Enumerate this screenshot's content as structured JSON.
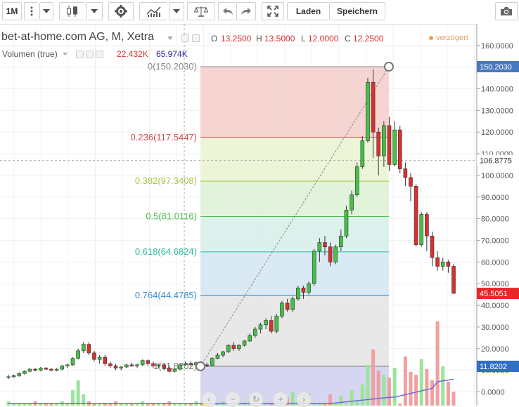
{
  "toolbar": {
    "interval": "1M",
    "load_label": "Laden",
    "save_label": "Speichern",
    "icons": [
      "more-vert-icon",
      "dropdown-icon",
      "candlestick-icon",
      "dropdown-icon",
      "gear-icon",
      "indicators-icon",
      "dropdown-icon",
      "compare-scale-icon",
      "undo-icon",
      "redo-icon",
      "fullscreen-icon",
      "camera-icon"
    ]
  },
  "legend": {
    "title": "bet-at-home.com AG, M, Xetra",
    "o_label": "O",
    "o_value": "13.2500",
    "h_label": "H",
    "h_value": "13.5000",
    "l_label": "L",
    "l_value": "12.0000",
    "c_label": "C",
    "c_value": "12.2500",
    "volume_label": "Volumen (true)",
    "volume_value": "22.432K",
    "volume_ma_value": "65.974K",
    "delayed": "verzögert"
  },
  "colors": {
    "up": "#44c144",
    "down": "#d83030",
    "volume_up": "#9be59b",
    "volume_down": "#f0a0a0",
    "price_tag": "#e8272a",
    "high_tag": "#4a78c0",
    "last_tag": "#2f6fc4"
  },
  "axis": {
    "labels": [
      "160.0000",
      "150.0000",
      "140.0000",
      "130.0000",
      "120.0000",
      "110.0000",
      "100.0000",
      "90.0000",
      "80.0000",
      "70.0000",
      "60.0000",
      "50.0000",
      "40.0000",
      "30.0000",
      "20.0000",
      "10.0000",
      "0.0000"
    ],
    "ticks": [
      160,
      150,
      140,
      130,
      120,
      110,
      100,
      90,
      80,
      70,
      60,
      50,
      40,
      30,
      20,
      10,
      0
    ],
    "tag_high": "150.2030",
    "tag_crosshair": "106.8775",
    "tag_last": "45.5051",
    "tag_low": "11.8202"
  },
  "fib": {
    "levels": [
      {
        "ratio": "0",
        "label": "0(150.2030)",
        "price": 150.203,
        "color": "#888888",
        "fill": "#f4cfcc"
      },
      {
        "ratio": "0.236",
        "label": "0.236(117.5447)",
        "price": 117.5447,
        "color": "#d44a4a",
        "fill": "#eaf4d4"
      },
      {
        "ratio": "0.382",
        "label": "0.382(97.3408)",
        "price": 97.3408,
        "color": "#a8c840",
        "fill": "#dff2d8"
      },
      {
        "ratio": "0.5",
        "label": "0.5(81.0116)",
        "price": 81.0116,
        "color": "#4cbc4c",
        "fill": "#d8f0ea"
      },
      {
        "ratio": "0.618",
        "label": "0.618(64.6824)",
        "price": 64.6824,
        "color": "#2cb8a0",
        "fill": "#d6e8f4"
      },
      {
        "ratio": "0.764",
        "label": "0.764(44.4785)",
        "price": 44.4785,
        "color": "#3a8ccc",
        "fill": "#e6e6e6"
      },
      {
        "ratio": "1",
        "label": "1(11.8202)",
        "price": 11.8202,
        "color": "#777777",
        "fill": "#d9d9f0"
      }
    ]
  },
  "chart_data": {
    "type": "candlestick",
    "title": "bet-at-home.com AG, M, Xetra",
    "ylim": [
      -4,
      168
    ],
    "candles": [
      [
        7,
        8,
        6,
        7
      ],
      [
        7,
        8,
        6.5,
        7.5
      ],
      [
        7.5,
        9,
        7,
        8.5
      ],
      [
        8.5,
        10,
        8,
        9.5
      ],
      [
        9.5,
        11,
        9,
        10.5
      ],
      [
        10.5,
        11,
        9.5,
        10
      ],
      [
        10,
        11.5,
        9.5,
        11
      ],
      [
        11,
        11.5,
        10,
        10.5
      ],
      [
        10.5,
        11,
        9.5,
        10
      ],
      [
        10,
        11,
        9.5,
        10.5
      ],
      [
        10.5,
        12.5,
        10,
        12
      ],
      [
        12,
        13,
        11,
        12.5
      ],
      [
        12.5,
        16,
        12,
        15.5
      ],
      [
        15.5,
        20,
        15,
        19
      ],
      [
        19,
        23,
        18,
        22
      ],
      [
        22,
        23,
        17,
        18
      ],
      [
        18,
        19,
        14,
        15
      ],
      [
        15,
        17,
        13,
        16
      ],
      [
        16,
        17,
        12,
        13
      ],
      [
        13,
        14,
        11,
        12
      ],
      [
        12,
        13,
        10,
        11
      ],
      [
        11,
        12,
        10,
        11.5
      ],
      [
        11.5,
        13,
        11,
        12.5
      ],
      [
        12.5,
        13.5,
        11.5,
        12
      ],
      [
        12,
        13,
        11,
        12.5
      ],
      [
        12.5,
        15,
        12,
        14.5
      ],
      [
        14.5,
        15,
        12,
        13
      ],
      [
        13,
        14,
        11,
        12
      ],
      [
        12,
        13,
        11,
        12.5
      ],
      [
        12.5,
        13,
        10,
        11
      ],
      [
        11,
        12,
        9,
        9.5
      ],
      [
        9.5,
        11,
        9,
        10.5
      ],
      [
        10.5,
        13,
        10,
        12.5
      ],
      [
        12.5,
        14,
        12,
        13
      ],
      [
        13,
        14,
        12,
        12.5
      ],
      [
        12.5,
        14,
        12,
        13.5
      ],
      [
        13.5,
        14,
        12,
        12.5
      ],
      [
        12.5,
        13.5,
        11.5,
        12.25
      ],
      [
        12.25,
        16,
        12,
        15.5
      ],
      [
        15.5,
        18,
        15,
        17
      ],
      [
        17,
        19,
        16,
        18.5
      ],
      [
        18.5,
        22,
        18,
        21.5
      ],
      [
        21.5,
        23,
        19,
        20
      ],
      [
        20,
        22,
        19,
        21.5
      ],
      [
        21.5,
        24,
        21,
        23.5
      ],
      [
        23.5,
        27,
        23,
        26
      ],
      [
        26,
        30,
        25,
        29
      ],
      [
        29,
        32,
        27,
        31
      ],
      [
        31,
        34,
        29,
        33
      ],
      [
        33,
        35,
        27,
        28
      ],
      [
        28,
        36,
        27,
        35
      ],
      [
        35,
        42,
        34,
        41
      ],
      [
        41,
        43,
        37,
        38
      ],
      [
        38,
        44,
        37,
        43
      ],
      [
        43,
        49,
        42,
        48
      ],
      [
        48,
        49,
        43,
        46
      ],
      [
        46,
        51,
        45,
        50
      ],
      [
        50,
        66,
        49,
        65
      ],
      [
        65,
        71,
        60,
        69
      ],
      [
        69,
        72,
        63,
        67
      ],
      [
        67,
        69,
        58,
        60
      ],
      [
        60,
        68,
        59,
        67
      ],
      [
        67,
        75,
        65,
        72
      ],
      [
        72,
        86,
        71,
        84
      ],
      [
        84,
        93,
        82,
        91
      ],
      [
        91,
        106,
        90,
        104
      ],
      [
        104,
        118,
        103,
        116
      ],
      [
        116,
        145,
        115,
        143
      ],
      [
        143,
        149,
        108,
        120
      ],
      [
        120,
        122,
        100,
        109
      ],
      [
        109,
        125,
        104,
        123
      ],
      [
        123,
        127,
        102,
        105
      ],
      [
        105,
        125,
        104,
        121
      ],
      [
        121,
        123,
        101,
        103
      ],
      [
        103,
        106,
        95,
        99
      ],
      [
        99,
        101,
        88,
        95
      ],
      [
        95,
        96,
        67,
        68
      ],
      [
        68,
        83,
        67,
        82
      ],
      [
        82,
        83,
        65,
        72
      ],
      [
        72,
        74,
        58,
        62
      ],
      [
        62,
        65,
        56,
        58
      ],
      [
        58,
        62,
        56,
        60
      ],
      [
        60,
        61,
        55,
        58
      ],
      [
        58,
        59,
        45.5,
        45.5
      ]
    ]
  }
}
